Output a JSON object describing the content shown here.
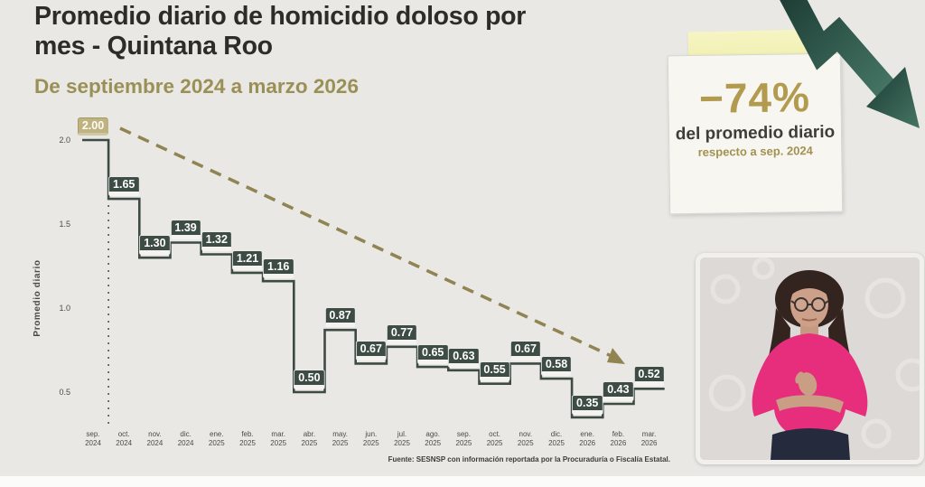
{
  "slide": {
    "title": "Promedio diario de homicidio doloso por mes - Quintana Roo",
    "subtitle": "De septiembre 2024 a marzo 2026",
    "source": "Fuente: SESNSP con información reportada por la Procuraduría o Fiscalía Estatal."
  },
  "chart_data": {
    "type": "line",
    "subtype": "step",
    "title": "Promedio diario de homicidio doloso por mes - Quintana Roo",
    "xlabel": "",
    "ylabel": "Promedio diario",
    "ylim": [
      0.3,
      2.1
    ],
    "yticks": [
      2.0,
      1.5,
      1.0,
      0.5
    ],
    "grid": false,
    "legend": false,
    "categories": [
      "sep. 2024",
      "oct. 2024",
      "nov. 2024",
      "dic. 2024",
      "ene. 2025",
      "feb. 2025",
      "mar. 2025",
      "abr. 2025",
      "may. 2025",
      "jun. 2025",
      "jul. 2025",
      "ago. 2025",
      "sep. 2025",
      "oct. 2025",
      "nov. 2025",
      "dic. 2025",
      "ene. 2026",
      "feb. 2026",
      "mar. 2026"
    ],
    "values": [
      2.0,
      1.65,
      1.3,
      1.39,
      1.32,
      1.21,
      1.16,
      0.5,
      0.87,
      0.67,
      0.77,
      0.65,
      0.63,
      0.55,
      0.67,
      0.58,
      0.35,
      0.43,
      0.52
    ],
    "value_label_decimals": 2,
    "annotations": [
      {
        "type": "dashed-trend-arrow",
        "from_month": "sep. 2024",
        "from_value": 2.0,
        "to_month": "feb. 2026"
      },
      {
        "type": "dashed-vertical-line",
        "month": "sep. 2024"
      }
    ]
  },
  "callout": {
    "value": "−74%",
    "caption": "del promedio diario",
    "subcaption": "respecto a sep. 2024"
  },
  "colors": {
    "accent_gold": "#8f8452",
    "badge_green": "#3d4c44",
    "first_badge_gold": "#bfb383",
    "arrow_teal_dark": "#1c3b33",
    "arrow_teal_light": "#457564",
    "callout_value_gold": "#b29a4e",
    "blouse_pink": "#e62e7c"
  }
}
